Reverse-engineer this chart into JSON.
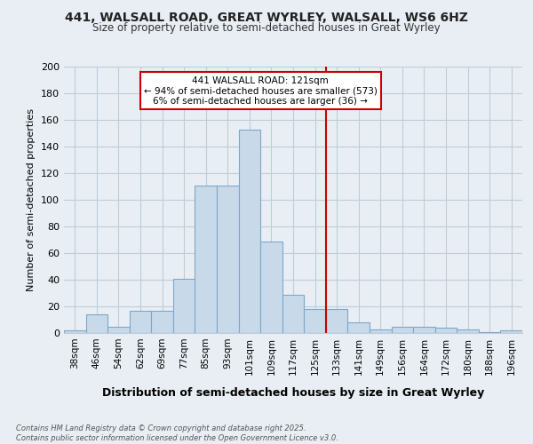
{
  "title1": "441, WALSALL ROAD, GREAT WYRLEY, WALSALL, WS6 6HZ",
  "title2": "Size of property relative to semi-detached houses in Great Wyrley",
  "xlabel": "Distribution of semi-detached houses by size in Great Wyrley",
  "ylabel": "Number of semi-detached properties",
  "bar_labels": [
    "38sqm",
    "46sqm",
    "54sqm",
    "62sqm",
    "69sqm",
    "77sqm",
    "85sqm",
    "93sqm",
    "101sqm",
    "109sqm",
    "117sqm",
    "125sqm",
    "133sqm",
    "141sqm",
    "149sqm",
    "156sqm",
    "164sqm",
    "172sqm",
    "180sqm",
    "188sqm",
    "196sqm"
  ],
  "bar_values": [
    2,
    14,
    5,
    17,
    17,
    41,
    111,
    111,
    153,
    69,
    29,
    18,
    18,
    8,
    3,
    5,
    5,
    4,
    3,
    1,
    2
  ],
  "bar_color": "#c8d9ea",
  "bar_edge_color": "#7da8c8",
  "vline_x": 11.5,
  "vline_color": "#cc0000",
  "annotation_text": "441 WALSALL ROAD: 121sqm\n← 94% of semi-detached houses are smaller (573)\n6% of semi-detached houses are larger (36) →",
  "annotation_box_color": "#cc0000",
  "ylim": [
    0,
    200
  ],
  "yticks": [
    0,
    20,
    40,
    60,
    80,
    100,
    120,
    140,
    160,
    180,
    200
  ],
  "footer": "Contains HM Land Registry data © Crown copyright and database right 2025.\nContains public sector information licensed under the Open Government Licence v3.0.",
  "bg_color": "#e8eef4",
  "plot_bg_color": "#e8eef4",
  "grid_color": "#c0ccd8"
}
